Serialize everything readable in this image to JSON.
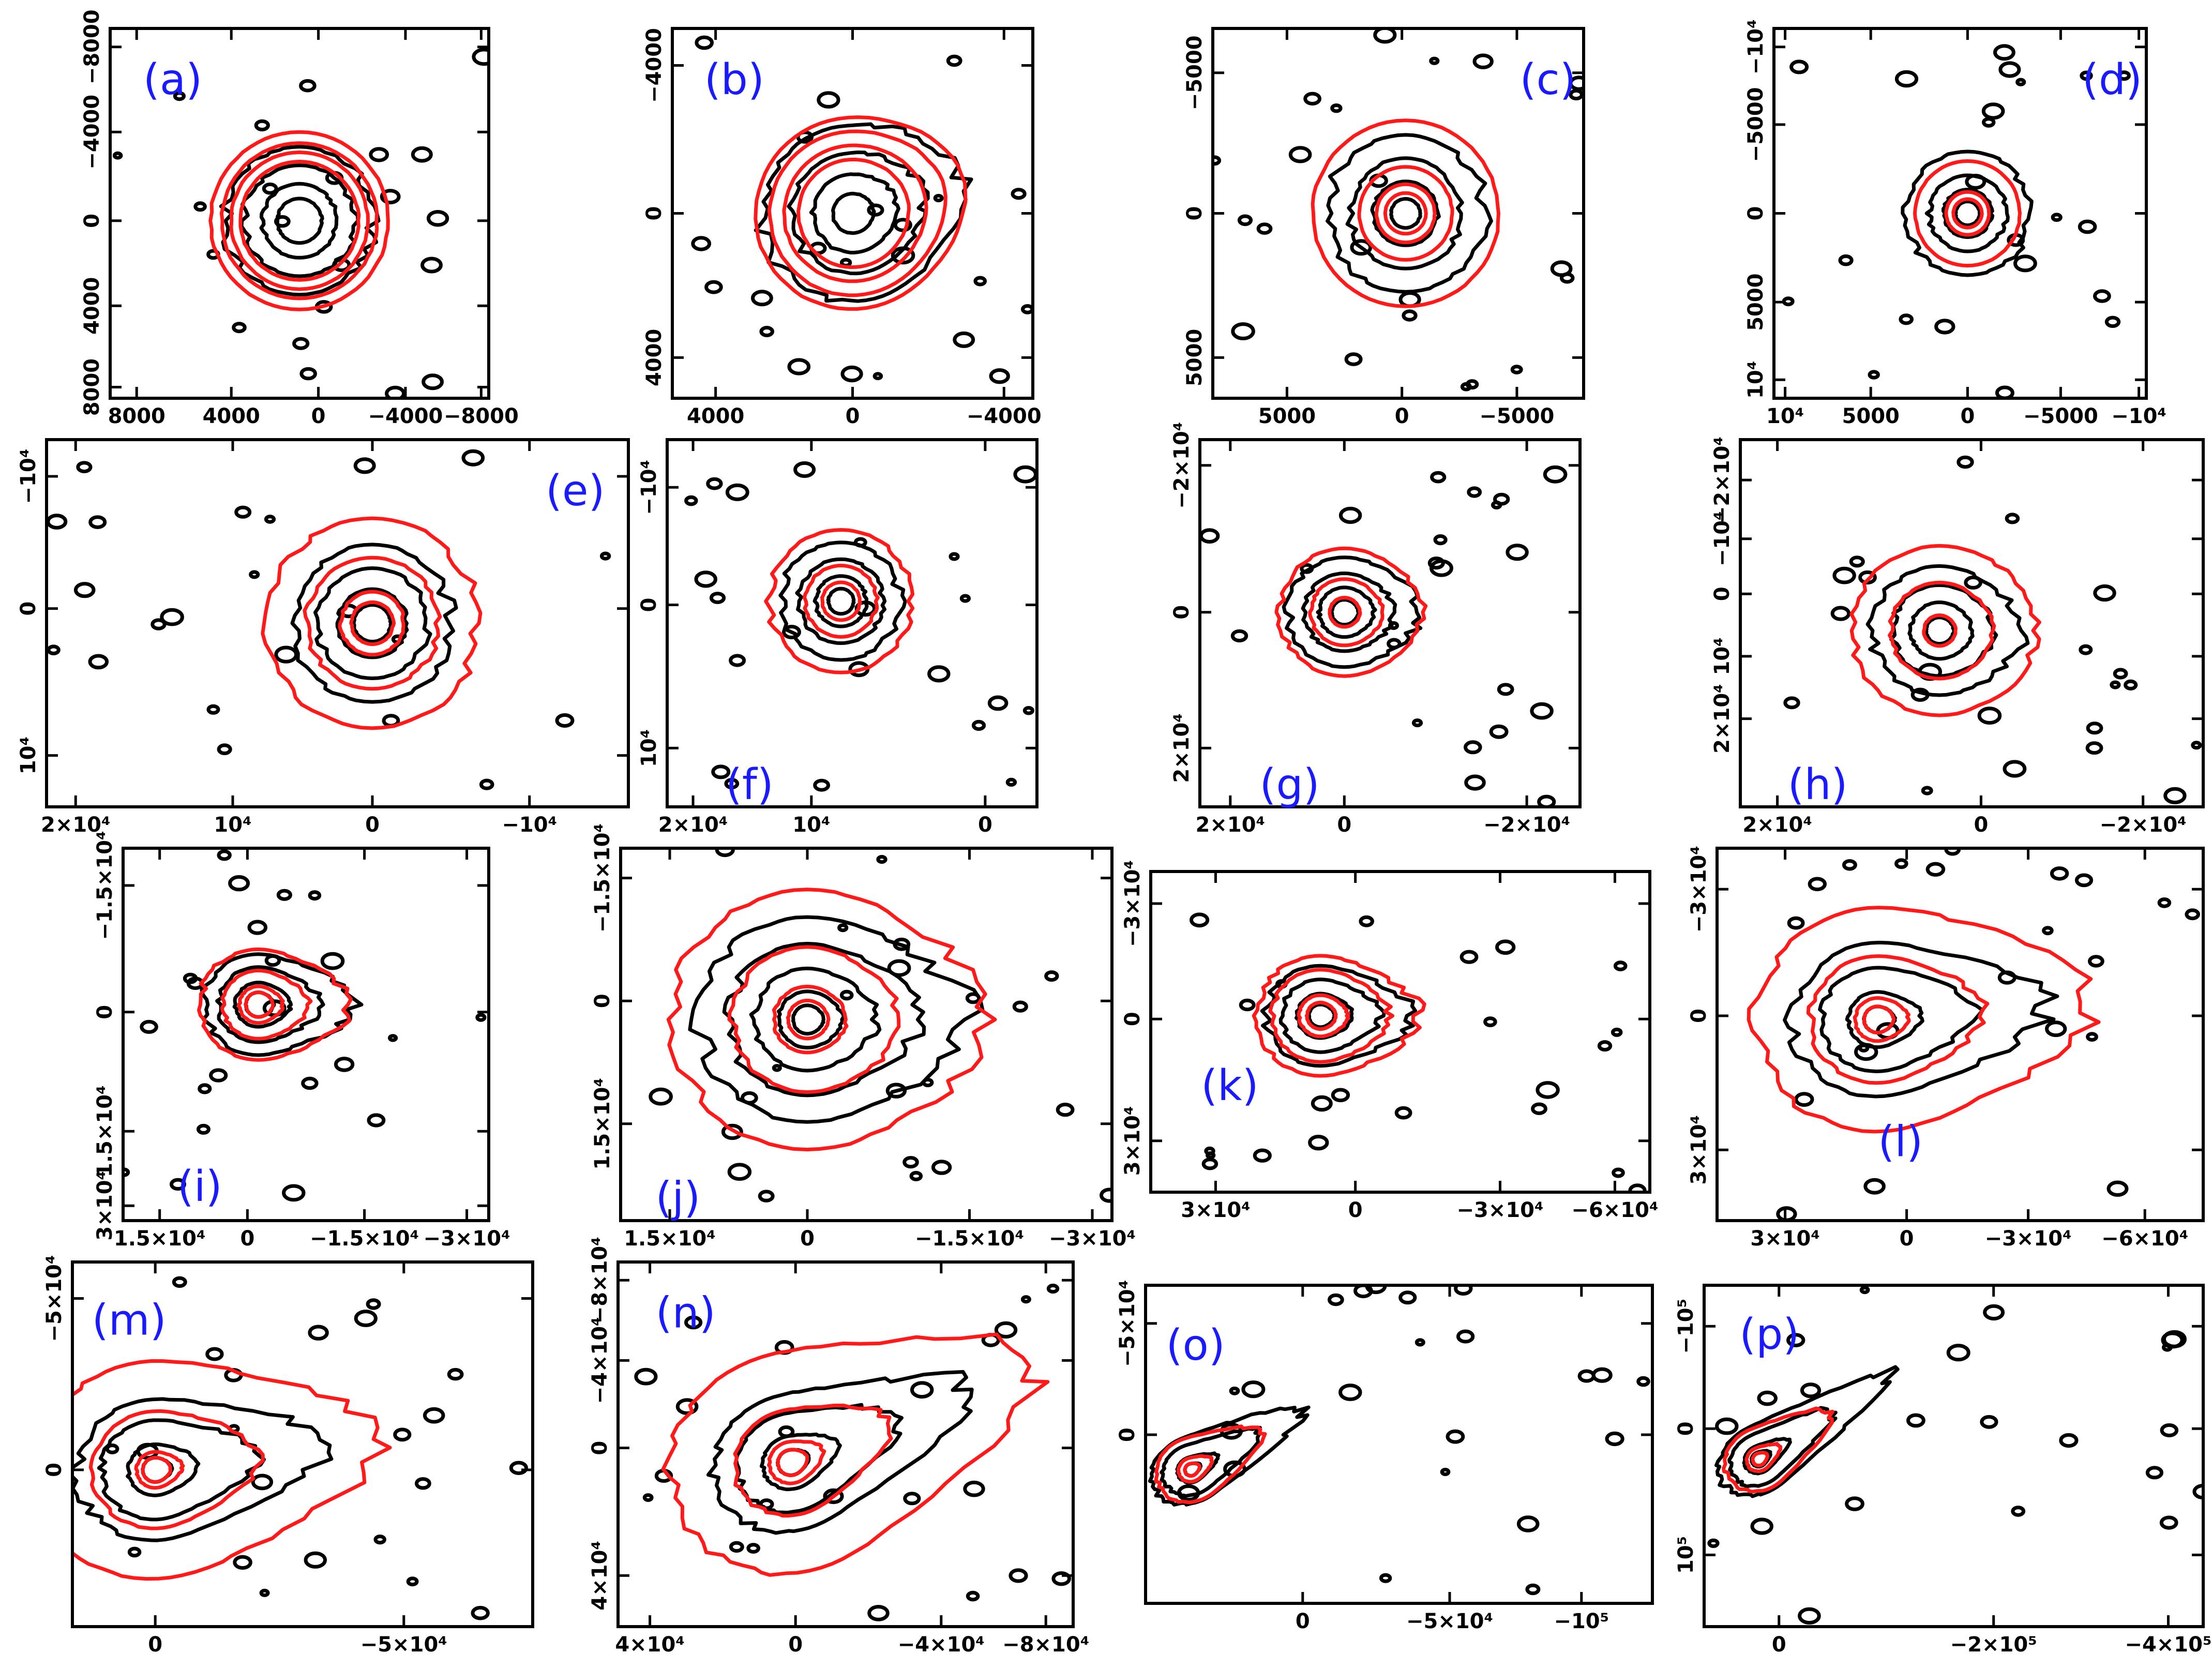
{
  "chart_data": [
    {
      "type": "contour",
      "panel_label": "(a)",
      "x_ticks": [
        "8000",
        "4000",
        "0",
        "−4000",
        "−8000"
      ],
      "y_ticks": [
        "−8000",
        "−4000",
        "0",
        "4000",
        "8000"
      ],
      "black_contours": 4,
      "red_contours": 4
    },
    {
      "type": "contour",
      "panel_label": "(b)",
      "x_ticks": [
        "4000",
        "0",
        "−4000"
      ],
      "y_ticks": [
        "−4000",
        "0",
        "4000"
      ],
      "black_contours": 4,
      "red_contours": 4
    },
    {
      "type": "contour",
      "panel_label": "(c)",
      "x_ticks": [
        "5000",
        "0",
        "−5000"
      ],
      "y_ticks": [
        "−5000",
        "0",
        "5000"
      ],
      "black_contours": 4,
      "red_contours": 4
    },
    {
      "type": "contour",
      "panel_label": "(d)",
      "x_ticks": [
        "10⁴",
        "5000",
        "0",
        "−5000",
        "−10⁴"
      ],
      "y_ticks": [
        "−10⁴",
        "−5000",
        "0",
        "5000",
        "10⁴"
      ],
      "black_contours": 4,
      "red_contours": 3
    },
    {
      "type": "contour",
      "panel_label": "(e)",
      "x_ticks": [
        "2×10⁴",
        "10⁴",
        "0",
        "−10⁴"
      ],
      "y_ticks": [
        "−10⁴",
        "0",
        "10⁴"
      ],
      "black_contours": 4,
      "red_contours": 4
    },
    {
      "type": "contour",
      "panel_label": "(f)",
      "x_ticks": [
        "2×10⁴",
        "10⁴",
        "0"
      ],
      "y_ticks": [
        "−10⁴",
        "0",
        "10⁴"
      ],
      "black_contours": 4,
      "red_contours": 3
    },
    {
      "type": "contour",
      "panel_label": "(g)",
      "x_ticks": [
        "2×10⁴",
        "0",
        "−2×10⁴"
      ],
      "y_ticks": [
        "−2×10⁴",
        "0",
        "2×10⁴"
      ],
      "black_contours": 4,
      "red_contours": 3
    },
    {
      "type": "contour",
      "panel_label": "(h)",
      "x_ticks": [
        "2×10⁴",
        "0",
        "−2×10⁴"
      ],
      "y_ticks": [
        "−2×10⁴",
        "−10⁴",
        "0",
        "10⁴",
        "2×10⁴"
      ],
      "black_contours": 4,
      "red_contours": 3
    },
    {
      "type": "contour",
      "panel_label": "(i)",
      "x_ticks": [
        "1.5×10⁴",
        "0",
        "−1.5×10⁴",
        "−3×10⁴"
      ],
      "y_ticks": [
        "−1.5×10⁴",
        "0",
        "1.5×10⁴",
        "3×10⁴"
      ],
      "black_contours": 4,
      "red_contours": 4
    },
    {
      "type": "contour",
      "panel_label": "(j)",
      "x_ticks": [
        "1.5×10⁴",
        "0",
        "−1.5×10⁴",
        "−3×10⁴"
      ],
      "y_ticks": [
        "−1.5×10⁴",
        "0",
        "1.5×10⁴"
      ],
      "black_contours": 5,
      "red_contours": 4
    },
    {
      "type": "contour",
      "panel_label": "(k)",
      "x_ticks": [
        "3×10⁴",
        "0",
        "−3×10⁴",
        "−6×10⁴"
      ],
      "y_ticks": [
        "−3×10⁴",
        "0",
        "3×10⁴"
      ],
      "black_contours": 4,
      "red_contours": 4
    },
    {
      "type": "contour",
      "panel_label": "(l)",
      "x_ticks": [
        "3×10⁴",
        "0",
        "−3×10⁴",
        "−6×10⁴"
      ],
      "y_ticks": [
        "−3×10⁴",
        "0",
        "3×10⁴"
      ],
      "black_contours": 4,
      "red_contours": 4
    },
    {
      "type": "contour",
      "panel_label": "(m)",
      "x_ticks": [
        "0",
        "−5×10⁴"
      ],
      "y_ticks": [
        "−5×10⁴",
        "0"
      ],
      "black_contours": 4,
      "red_contours": 4
    },
    {
      "type": "contour",
      "panel_label": "(n)",
      "x_ticks": [
        "4×10⁴",
        "0",
        "−4×10⁴",
        "−8×10⁴"
      ],
      "y_ticks": [
        "−8×10⁴",
        "−4×10⁴",
        "0",
        "4×10⁴"
      ],
      "black_contours": 4,
      "red_contours": 4
    },
    {
      "type": "contour",
      "panel_label": "(o)",
      "x_ticks": [
        "0",
        "−5×10⁴",
        "−10⁵"
      ],
      "y_ticks": [
        "−5×10⁴",
        "0"
      ],
      "black_contours": 4,
      "red_contours": 3
    },
    {
      "type": "contour",
      "panel_label": "(p)",
      "x_ticks": [
        "0",
        "−2×10⁵",
        "−4×10⁵"
      ],
      "y_ticks": [
        "−10⁵",
        "0",
        "10⁵"
      ],
      "black_contours": 4,
      "red_contours": 3
    }
  ],
  "colors": {
    "black_contour": "#000000",
    "red_contour": "#ff1a1a",
    "panel_label": "#1a1aff"
  }
}
